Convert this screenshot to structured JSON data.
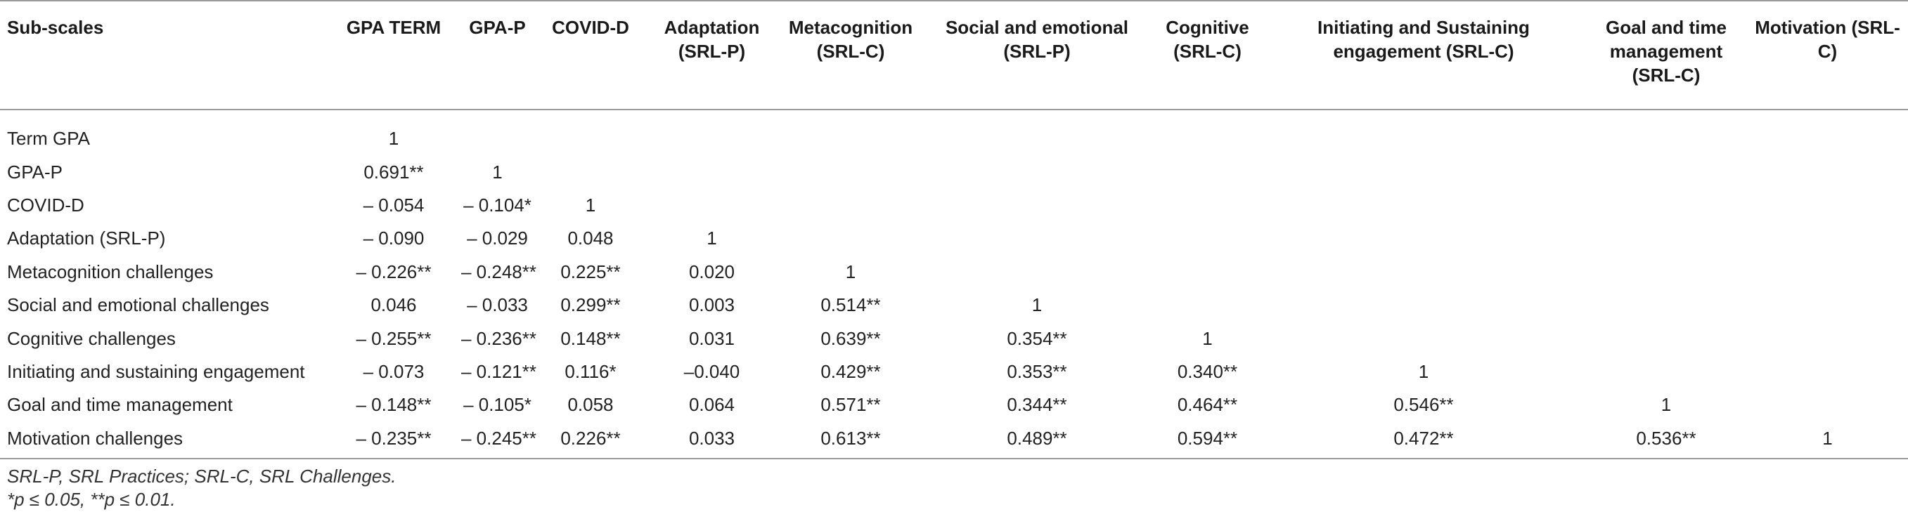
{
  "table": {
    "headers": [
      "Sub-scales",
      "GPA TERM",
      "GPA-P",
      "COVID-D",
      "Adaptation (SRL-P)",
      "Metacognition (SRL-C)",
      "Social and emotional (SRL-P)",
      "Cognitive (SRL-C)",
      "Initiating and Sustaining engagement (SRL-C)",
      "Goal and time management (SRL-C)",
      "Motivation (SRL-C)"
    ],
    "rows": [
      {
        "label": "Term GPA",
        "cells": [
          "1",
          "",
          "",
          "",
          "",
          "",
          "",
          "",
          "",
          ""
        ]
      },
      {
        "label": "GPA-P",
        "cells": [
          "0.691**",
          "1",
          "",
          "",
          "",
          "",
          "",
          "",
          "",
          ""
        ]
      },
      {
        "label": "COVID-D",
        "cells": [
          "– 0.054",
          "– 0.104*",
          "1",
          "",
          "",
          "",
          "",
          "",
          "",
          ""
        ]
      },
      {
        "label": "Adaptation (SRL-P)",
        "cells": [
          "– 0.090",
          "– 0.029",
          "0.048",
          "1",
          "",
          "",
          "",
          "",
          "",
          ""
        ]
      },
      {
        "label": "Metacognition challenges",
        "cells": [
          "– 0.226**",
          "– 0.248**",
          "0.225**",
          "0.020",
          "1",
          "",
          "",
          "",
          "",
          ""
        ]
      },
      {
        "label": "Social and emotional challenges",
        "cells": [
          "0.046",
          "– 0.033",
          "0.299**",
          "0.003",
          "0.514**",
          "1",
          "",
          "",
          "",
          ""
        ]
      },
      {
        "label": "Cognitive challenges",
        "cells": [
          "– 0.255**",
          "– 0.236**",
          "0.148**",
          "0.031",
          "0.639**",
          "0.354**",
          "1",
          "",
          "",
          ""
        ]
      },
      {
        "label": "Initiating and sustaining engagement",
        "cells": [
          "– 0.073",
          "– 0.121**",
          "0.116*",
          "–0.040",
          "0.429**",
          "0.353**",
          "0.340**",
          "1",
          "",
          ""
        ]
      },
      {
        "label": "Goal and time management",
        "cells": [
          "– 0.148**",
          "– 0.105*",
          "0.058",
          "0.064",
          "0.571**",
          "0.344**",
          "0.464**",
          "0.546**",
          "1",
          ""
        ]
      },
      {
        "label": "Motivation challenges",
        "cells": [
          "– 0.235**",
          "– 0.245**",
          "0.226**",
          "0.033",
          "0.613**",
          "0.489**",
          "0.594**",
          "0.472**",
          "0.536**",
          "1"
        ]
      }
    ]
  },
  "notes": {
    "abbreviations": "SRL-P, SRL Practices; SRL-C, SRL Challenges.",
    "significance": "*p ≤ 0.05, **p ≤ 0.01."
  },
  "colors": {
    "rule": "#9a9a9a",
    "text": "#222222"
  }
}
